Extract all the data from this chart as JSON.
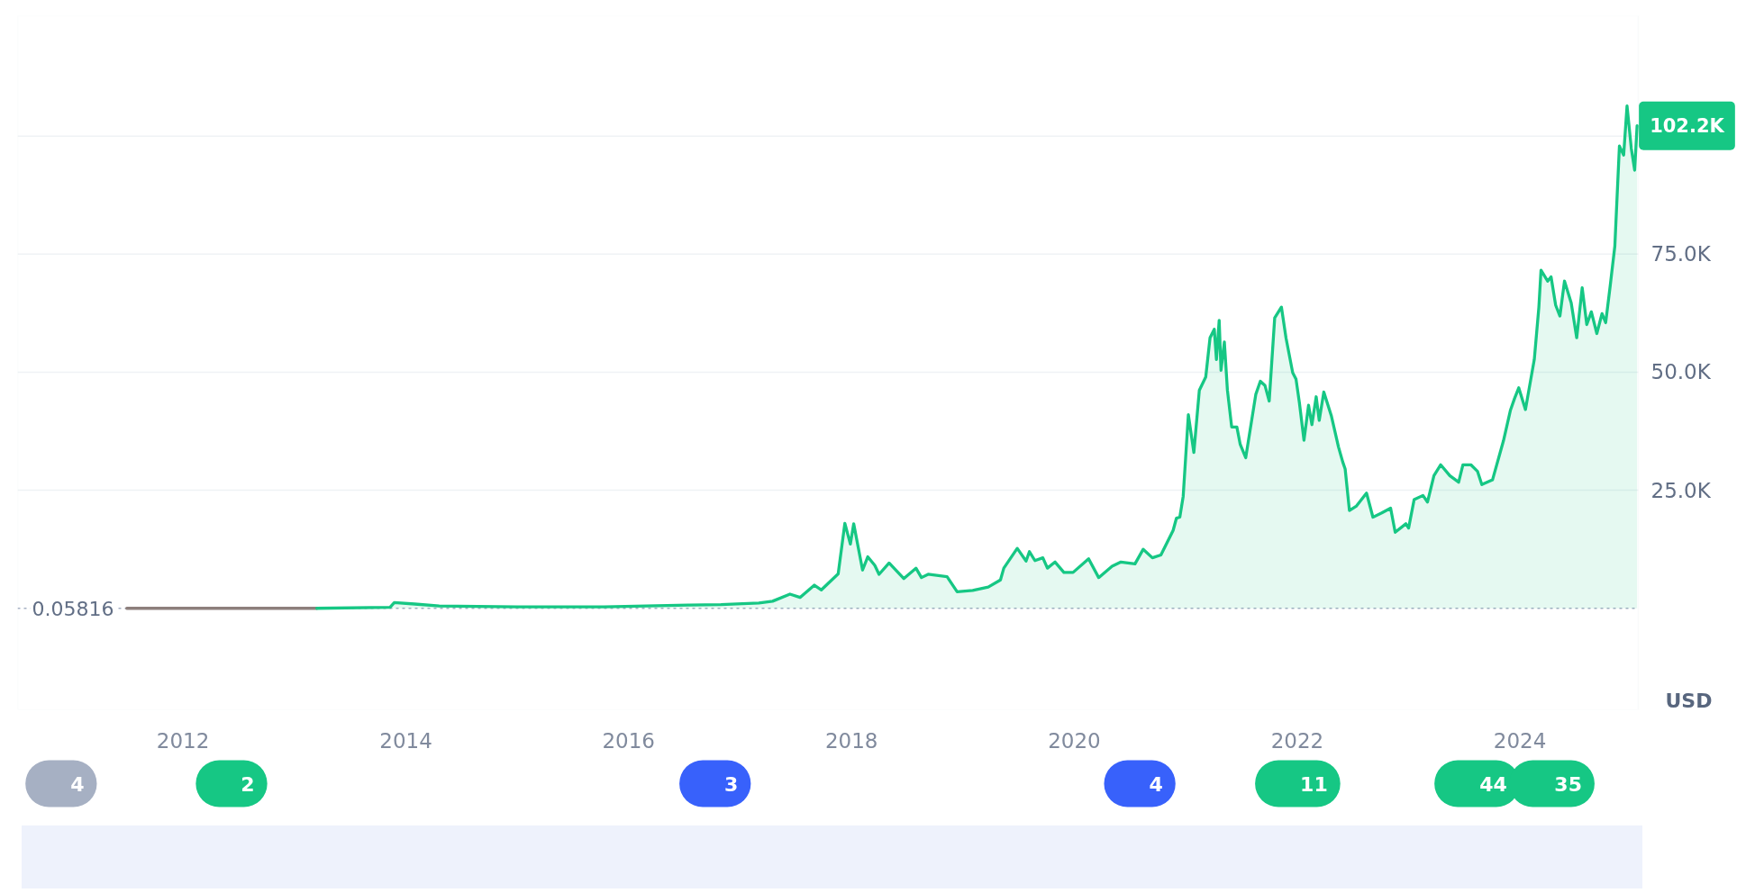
{
  "chart_data": {
    "type": "area",
    "xlim": [
      "2010-07-08",
      "2025-01-23"
    ],
    "xticks": [
      "2012",
      "2014",
      "2016",
      "2018",
      "2020",
      "2022",
      "2024"
    ],
    "ylim": [
      -21500,
      125500
    ],
    "yticks": [
      {
        "value": 25000,
        "label": "25.0K"
      },
      {
        "value": 50000,
        "label": "50.0K"
      },
      {
        "value": 75000,
        "label": "75.0K"
      },
      {
        "value": 100000,
        "label": null
      }
    ],
    "ylabel": "USD",
    "grid": "y",
    "ref_lines": [
      {
        "axis": "y",
        "value": 0.05816,
        "label": "0.05816",
        "color": "#a6b0c3",
        "line_style": "dashed"
      }
    ],
    "annotations": [
      {
        "text": "102.2K",
        "x": "2025-01-19",
        "y": 102200
      },
      "4",
      "2",
      "3",
      "4",
      "11",
      "44",
      "35"
    ],
    "series": [
      {
        "type": "line",
        "color": "#8d7f7c",
        "x": [
          "2011-07-01",
          "2012-07-01",
          "2013-03-15"
        ],
        "values": [
          0,
          0,
          0
        ]
      },
      {
        "color": "#16c784",
        "x": [
          "2013-03-15",
          "2013-11-10",
          "2013-11-24",
          "2014-01-30",
          "2014-04-20",
          "2015-01-01",
          "2015-10-12",
          "2016-07-19",
          "2016-10-30",
          "2017-03-03",
          "2017-04-17",
          "2017-06-13",
          "2017-07-16",
          "2017-09-01",
          "2017-09-24",
          "2017-11-18",
          "2017-12-10",
          "2017-12-28",
          "2018-01-08",
          "2018-02-06",
          "2018-02-23",
          "2018-03-18",
          "2018-04-01",
          "2018-05-04",
          "2018-06-21",
          "2018-07-31",
          "2018-08-18",
          "2018-09-09",
          "2018-11-10",
          "2018-12-13",
          "2019-02-02",
          "2019-03-25",
          "2019-05-04",
          "2019-05-15",
          "2019-06-28",
          "2019-07-27",
          "2019-08-07",
          "2019-08-25",
          "2019-09-20",
          "2019-10-05",
          "2019-10-30",
          "2019-11-28",
          "2019-12-28",
          "2020-02-17",
          "2020-03-21",
          "2020-05-04",
          "2020-06-02",
          "2020-07-18",
          "2020-08-14",
          "2020-09-13",
          "2020-10-11",
          "2020-11-20",
          "2020-12-01",
          "2020-12-12",
          "2020-12-23",
          "2021-01-09",
          "2021-01-27",
          "2021-02-14",
          "2021-03-07",
          "2021-03-21",
          "2021-04-04",
          "2021-04-11",
          "2021-04-20",
          "2021-04-26",
          "2021-05-07",
          "2021-05-17",
          "2021-05-31",
          "2021-06-17",
          "2021-06-28",
          "2021-07-16",
          "2021-08-18",
          "2021-09-02",
          "2021-09-17",
          "2021-10-01",
          "2021-10-19",
          "2021-11-10",
          "2021-11-25",
          "2021-12-17",
          "2021-12-28",
          "2022-01-08",
          "2022-01-23",
          "2022-02-07",
          "2022-02-18",
          "2022-03-04",
          "2022-03-14",
          "2022-03-29",
          "2022-04-23",
          "2022-05-16",
          "2022-05-30",
          "2022-06-07",
          "2022-06-21",
          "2022-07-13",
          "2022-08-16",
          "2022-09-06",
          "2022-10-05",
          "2022-11-03",
          "2022-11-18",
          "2022-12-23",
          "2023-01-01",
          "2023-01-19",
          "2023-02-17",
          "2023-03-04",
          "2023-03-25",
          "2023-04-16",
          "2023-05-16",
          "2023-06-14",
          "2023-06-28",
          "2023-07-24",
          "2023-08-15",
          "2023-08-29",
          "2023-10-03",
          "2023-11-08",
          "2023-12-01",
          "2023-12-14",
          "2023-12-28",
          "2024-01-19",
          "2024-02-17",
          "2024-03-03",
          "2024-03-10",
          "2024-04-01",
          "2024-04-12",
          "2024-04-27",
          "2024-05-11",
          "2024-05-26",
          "2024-06-17",
          "2024-07-05",
          "2024-07-23",
          "2024-08-07",
          "2024-08-22",
          "2024-09-09",
          "2024-09-26",
          "2024-10-08",
          "2024-10-23",
          "2024-11-07",
          "2024-11-22",
          "2024-12-06",
          "2024-12-17",
          "2024-12-31",
          "2025-01-11",
          "2025-01-19"
        ],
        "values": [
          0,
          200,
          1200,
          900,
          500,
          300,
          300,
          700,
          800,
          1100,
          1500,
          3000,
          2300,
          4900,
          3900,
          7300,
          18000,
          13600,
          17900,
          8100,
          10900,
          9100,
          7200,
          9600,
          6300,
          8500,
          6500,
          7200,
          6700,
          3500,
          3800,
          4500,
          6000,
          8500,
          12700,
          10000,
          12000,
          10100,
          10700,
          8500,
          9800,
          7600,
          7600,
          10500,
          6500,
          8900,
          9800,
          9400,
          12500,
          10700,
          11300,
          16500,
          19100,
          19300,
          23700,
          41000,
          33000,
          46200,
          49000,
          57300,
          59100,
          52700,
          61000,
          50400,
          56400,
          46200,
          38400,
          38400,
          34700,
          31900,
          45300,
          48100,
          47200,
          43900,
          61500,
          63800,
          57300,
          49900,
          48500,
          43500,
          35600,
          43000,
          38900,
          44800,
          39800,
          45800,
          40700,
          34200,
          31000,
          29500,
          20700,
          21600,
          24400,
          19300,
          20200,
          21200,
          16100,
          17900,
          17000,
          23000,
          23900,
          22500,
          28100,
          30400,
          28100,
          26700,
          30400,
          30400,
          29000,
          26200,
          27200,
          35500,
          42000,
          44400,
          46700,
          42100,
          52700,
          63800,
          71600,
          69300,
          70200,
          64200,
          61900,
          69300,
          64700,
          57300,
          67900,
          60100,
          62800,
          58200,
          62400,
          60500,
          68400,
          76700,
          97900,
          96000,
          106400,
          97400,
          92800,
          102200
        ]
      }
    ]
  }
}
